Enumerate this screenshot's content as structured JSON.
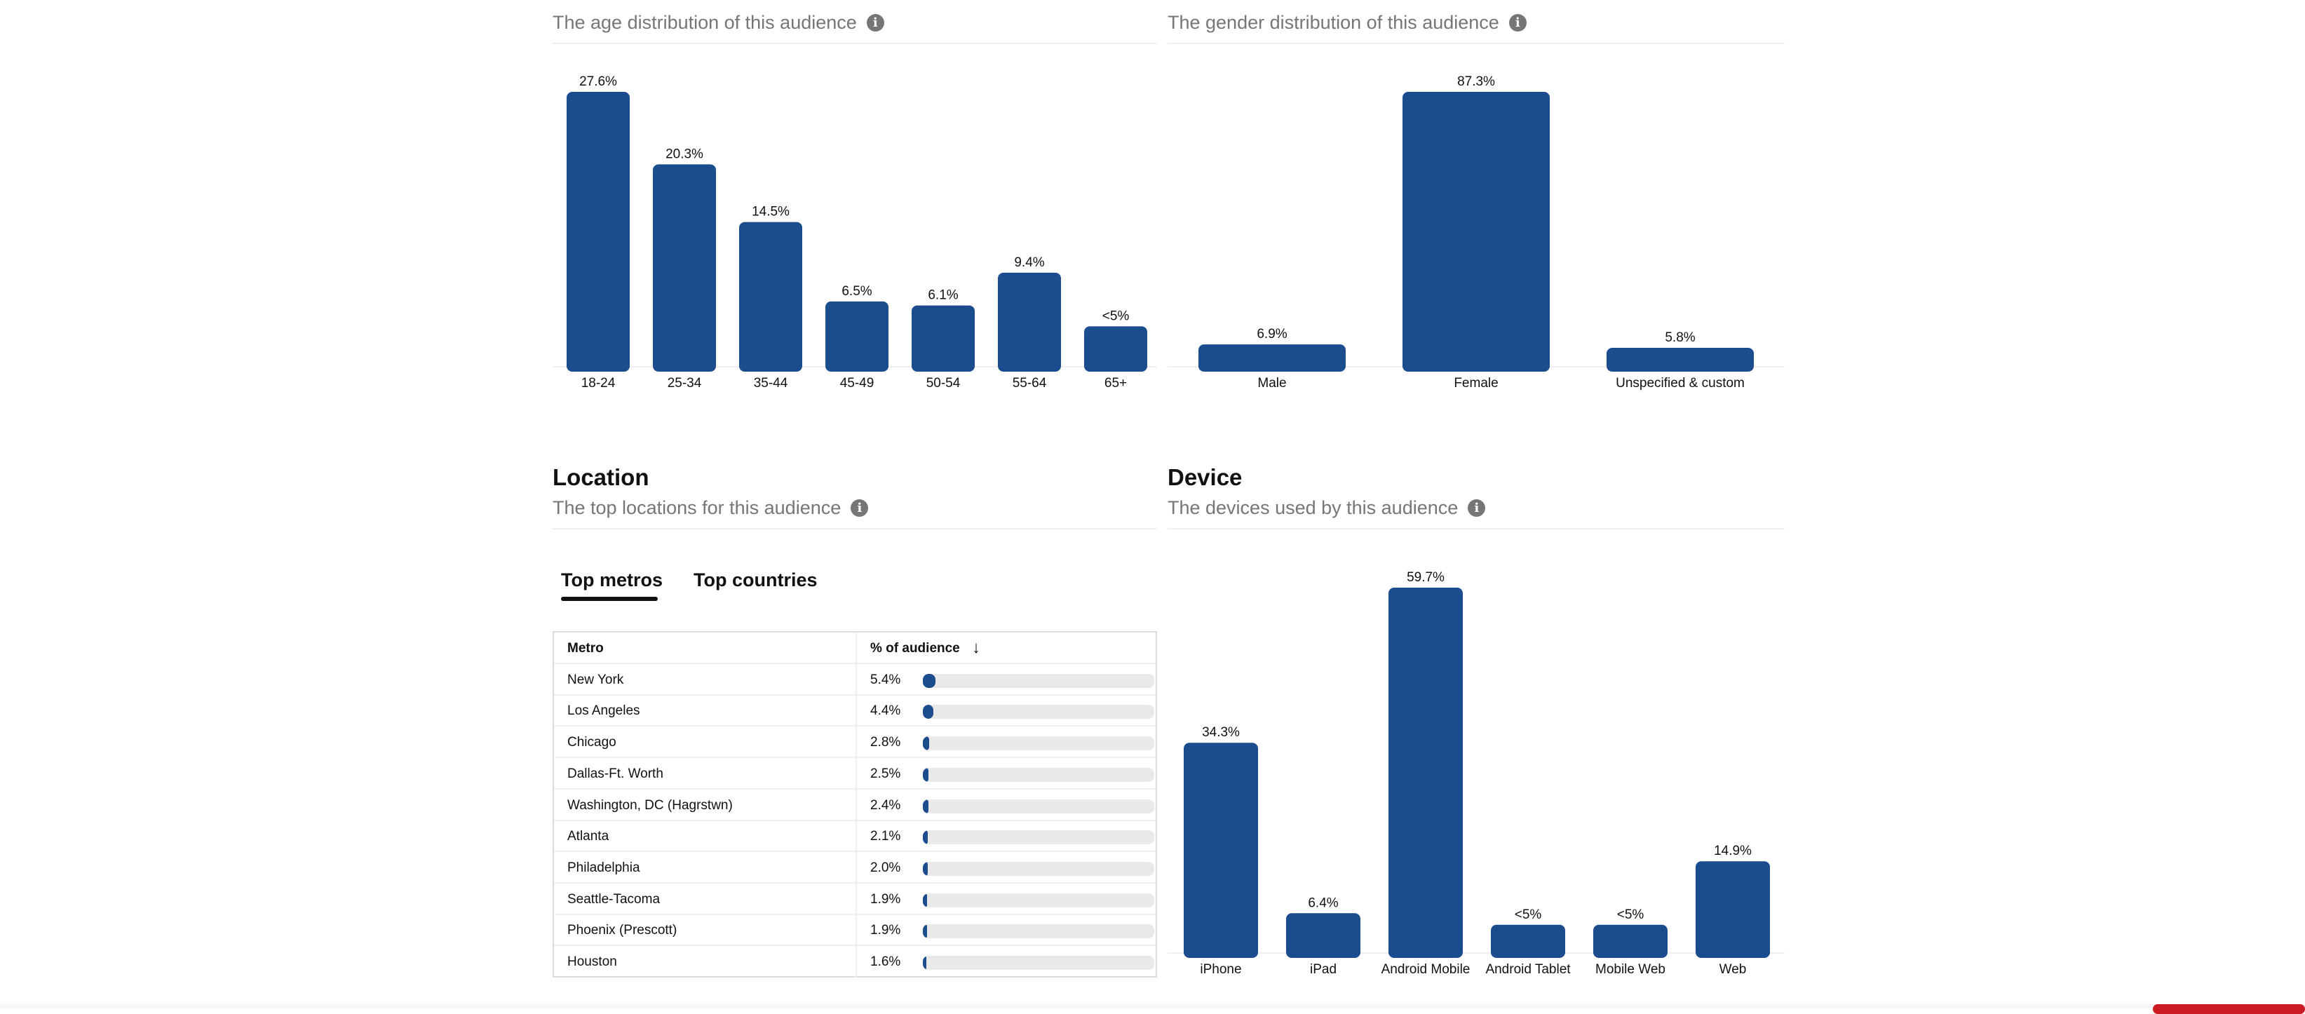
{
  "age_card": {
    "subtitle": "The age distribution of this audience",
    "info_glyph": "i",
    "icon": "info-icon"
  },
  "gender_card": {
    "subtitle": "The gender distribution of this audience",
    "info_glyph": "i",
    "icon": "info-icon"
  },
  "location_card": {
    "title": "Location",
    "subtitle": "The top locations for this audience",
    "info_glyph": "i",
    "tabs": [
      {
        "label": "Top metros",
        "active": true
      },
      {
        "label": "Top countries",
        "active": false
      }
    ],
    "table": {
      "col_metro": "Metro",
      "col_pct": "% of audience",
      "sort_glyph": "↓",
      "rows": [
        {
          "metro": "New York",
          "pct_label": "5.4%",
          "pct": 5.4
        },
        {
          "metro": "Los Angeles",
          "pct_label": "4.4%",
          "pct": 4.4
        },
        {
          "metro": "Chicago",
          "pct_label": "2.8%",
          "pct": 2.8
        },
        {
          "metro": "Dallas-Ft. Worth",
          "pct_label": "2.5%",
          "pct": 2.5
        },
        {
          "metro": "Washington, DC (Hagrstwn)",
          "pct_label": "2.4%",
          "pct": 2.4
        },
        {
          "metro": "Atlanta",
          "pct_label": "2.1%",
          "pct": 2.1
        },
        {
          "metro": "Philadelphia",
          "pct_label": "2.0%",
          "pct": 2.0
        },
        {
          "metro": "Seattle-Tacoma",
          "pct_label": "1.9%",
          "pct": 1.9
        },
        {
          "metro": "Phoenix (Prescott)",
          "pct_label": "1.9%",
          "pct": 1.9
        },
        {
          "metro": "Houston",
          "pct_label": "1.6%",
          "pct": 1.6
        }
      ]
    }
  },
  "device_card": {
    "title": "Device",
    "subtitle": "The devices used by this audience",
    "info_glyph": "i"
  },
  "colors": {
    "bar": "#1b4c8e",
    "track": "#e9e9e9",
    "muted_text": "#767676",
    "accent_red": "#cc1b22"
  },
  "chart_data": [
    {
      "id": "age",
      "type": "bar",
      "categories": [
        "18-24",
        "25-34",
        "35-44",
        "45-49",
        "50-54",
        "55-64",
        "65+"
      ],
      "values": [
        27.6,
        20.3,
        14.5,
        6.5,
        6.1,
        9.4,
        4.0
      ],
      "labels": [
        "27.6%",
        "20.3%",
        "14.5%",
        "6.5%",
        "6.1%",
        "9.4%",
        "<5%"
      ],
      "ylim": [
        0,
        27.6
      ]
    },
    {
      "id": "gender",
      "type": "bar",
      "categories": [
        "Male",
        "Female",
        "Unspecified & custom"
      ],
      "values": [
        6.9,
        87.3,
        5.8
      ],
      "labels": [
        "6.9%",
        "87.3%",
        "5.8%"
      ],
      "ylim": [
        0,
        87.3
      ]
    },
    {
      "id": "device",
      "type": "bar",
      "categories": [
        "iPhone",
        "iPad",
        "Android Mobile",
        "Android Tablet",
        "Mobile Web",
        "Web"
      ],
      "values": [
        34.3,
        6.4,
        59.7,
        4.5,
        4.5,
        14.9
      ],
      "labels": [
        "34.3%",
        "6.4%",
        "59.7%",
        "<5%",
        "<5%",
        "14.9%"
      ],
      "ylim": [
        0,
        59.7
      ]
    }
  ]
}
